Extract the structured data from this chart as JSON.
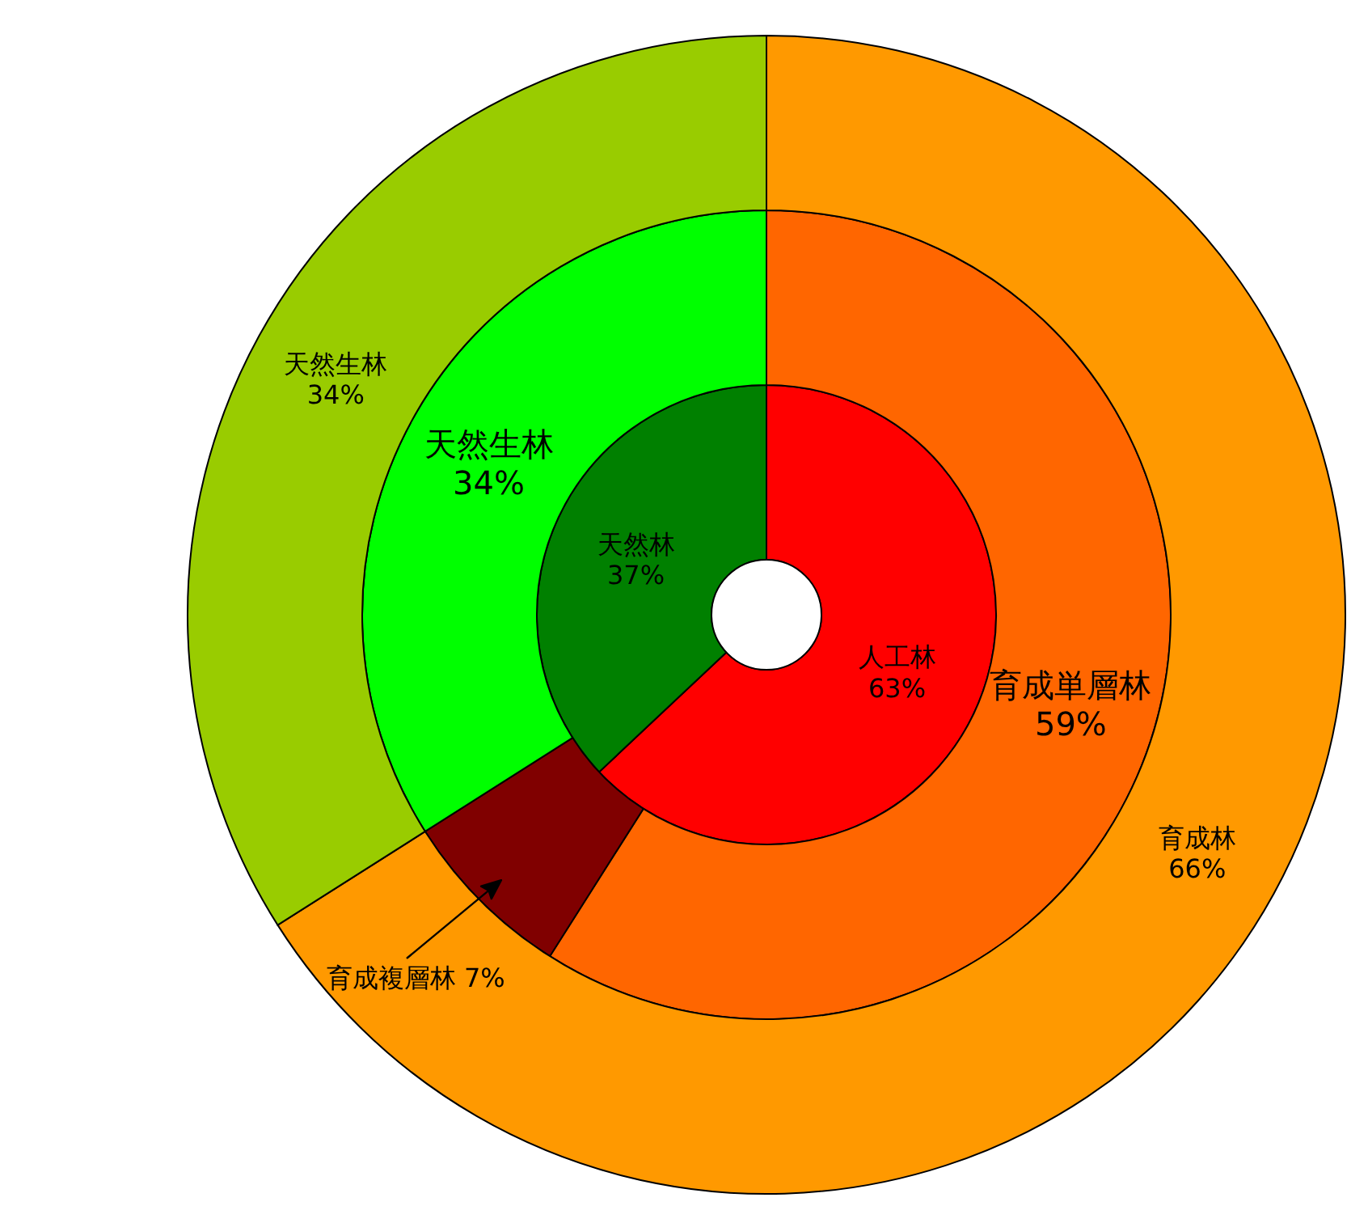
{
  "chart_data": [
    {
      "type": "donut",
      "categories": [
        "人工林",
        "天然林"
      ],
      "values": [
        63,
        37
      ],
      "value_labels": [
        "63%",
        "37%"
      ],
      "colors": [
        "#ff0000",
        "#008000"
      ]
    },
    {
      "type": "donut",
      "categories": [
        "育成単層林",
        "育成複層林",
        "天然生林"
      ],
      "values": [
        59,
        7,
        34
      ],
      "value_labels": [
        "59%",
        "7%",
        "34%"
      ],
      "colors": [
        "#ff6600",
        "#800000",
        "#00ff00"
      ]
    },
    {
      "type": "donut",
      "categories": [
        "育成林",
        "天然生林"
      ],
      "values": [
        66,
        34
      ],
      "value_labels": [
        "66%",
        "34%"
      ],
      "colors": [
        "#ff9900",
        "#99cc00"
      ]
    }
  ]
}
